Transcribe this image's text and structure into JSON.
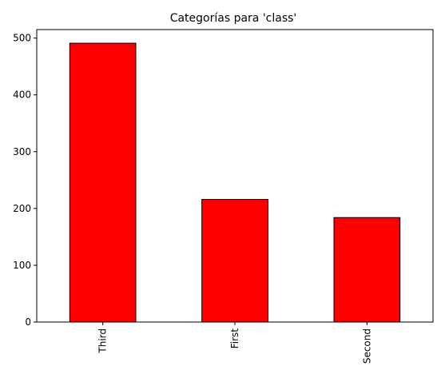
{
  "chart_data": {
    "type": "bar",
    "title": "Categorías para 'class'",
    "categories": [
      "Third",
      "First",
      "Second"
    ],
    "values": [
      491,
      216,
      184
    ],
    "xlabel": "",
    "ylabel": "",
    "ylim": [
      0,
      515
    ],
    "yticks": [
      0,
      100,
      200,
      300,
      400,
      500
    ],
    "bar_color": "#ff0000",
    "edge_color": "#000000",
    "grid": false,
    "legend": "none"
  }
}
